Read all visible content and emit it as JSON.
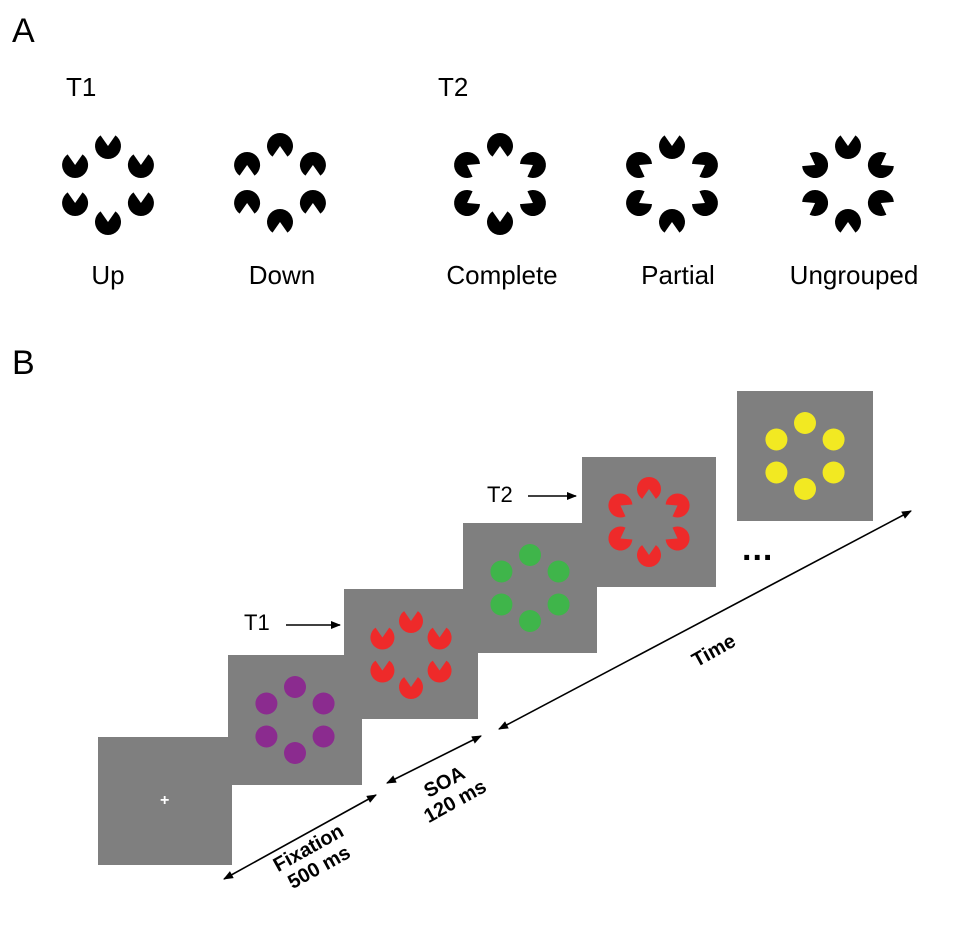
{
  "panel_a": {
    "letter": "A",
    "t1_label": "T1",
    "t2_label": "T2",
    "conditions": [
      {
        "label": "Up"
      },
      {
        "label": "Down"
      },
      {
        "label": "Complete"
      },
      {
        "label": "Partial"
      },
      {
        "label": "Ungrouped"
      }
    ]
  },
  "panel_b": {
    "letter": "B",
    "fixation_symbol": "+",
    "t1_pointer": "T1",
    "t2_pointer": "T2",
    "ellipsis": "...",
    "fixation_label_1": "Fixation",
    "fixation_label_2": "500 ms",
    "soa_label_1": "SOA",
    "soa_label_2": "120 ms",
    "time_label": "Time"
  },
  "colors": {
    "background": "#ffffff",
    "screen": "#7f7f7f",
    "black": "#000000",
    "purple": "#8b2b8f",
    "red": "#ee2a2a",
    "green": "#3fb54a",
    "yellow": "#f2e922",
    "fixation": "#ffffff"
  },
  "icons": [
    "pacman-inducer",
    "disc",
    "arrow",
    "double-headed-arrow"
  ]
}
